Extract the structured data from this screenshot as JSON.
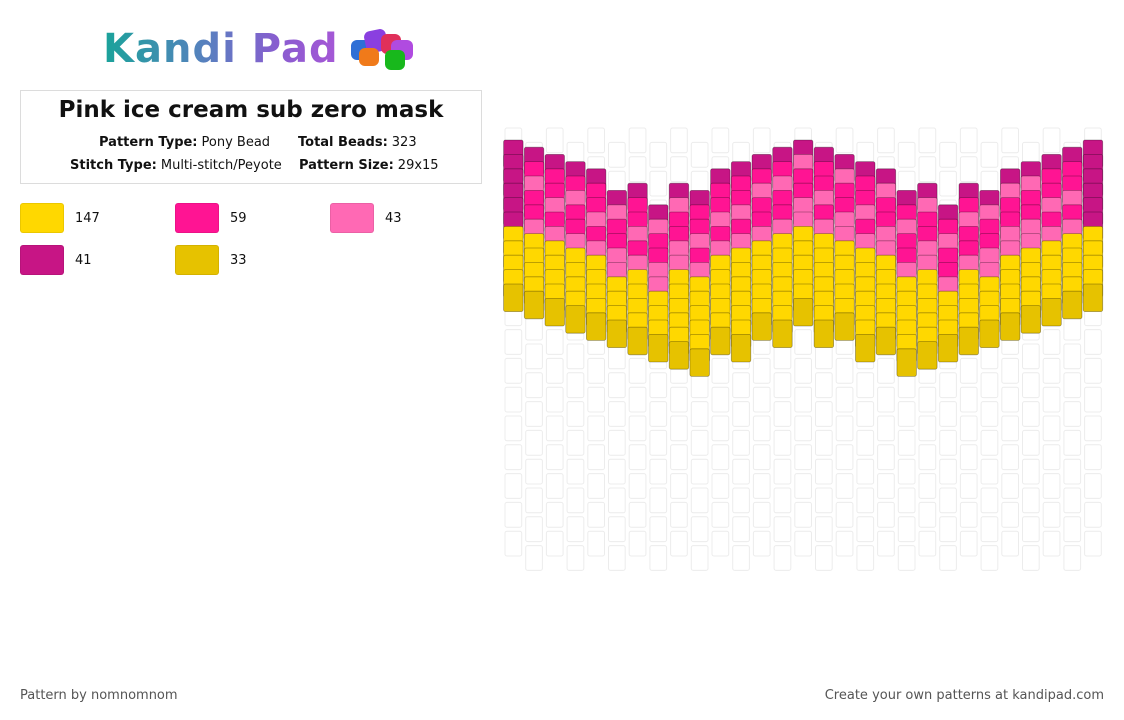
{
  "brand": {
    "name": "Kandi Pad"
  },
  "pattern": {
    "title": "Pink ice cream sub zero mask",
    "type_label": "Pattern Type:",
    "type_value": "Pony Bead",
    "beads_label": "Total Beads:",
    "beads_value": "323",
    "stitch_label": "Stitch Type:",
    "stitch_value": "Multi-stitch/Peyote",
    "size_label": "Pattern Size:",
    "size_value": "29x15"
  },
  "legend": [
    {
      "color": "#FFD800",
      "count": "147"
    },
    {
      "color": "#FF1493",
      "count": "59"
    },
    {
      "color": "#FF69B4",
      "count": "43"
    },
    {
      "color": "#C71585",
      "count": "41"
    },
    {
      "color": "#E6C200",
      "count": "33"
    }
  ],
  "footer": {
    "author": "Pattern by nomnomnom",
    "credit": "Create your own patterns at kandipad.com"
  }
}
